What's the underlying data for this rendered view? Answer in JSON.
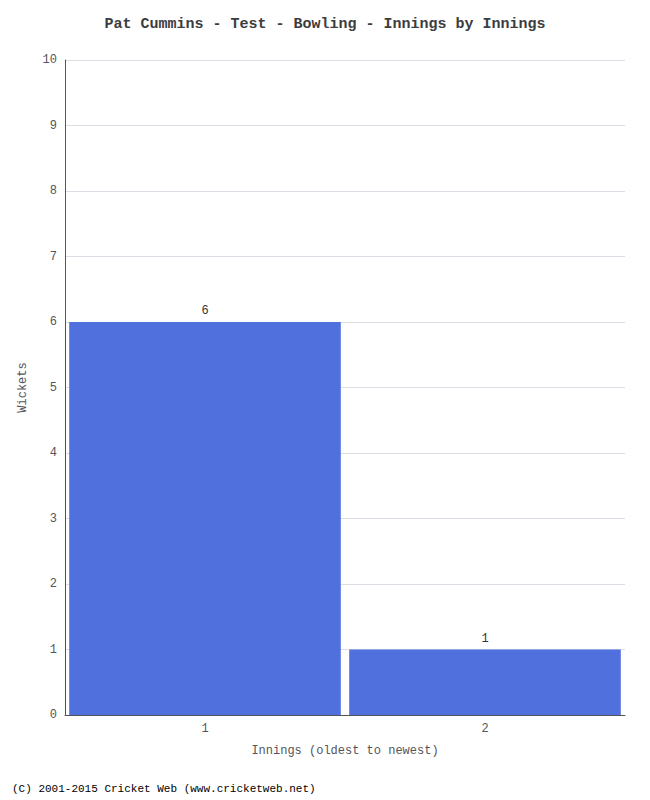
{
  "chart_data": {
    "type": "bar",
    "title": "Pat Cummins - Test - Bowling - Innings by Innings",
    "xlabel": "Innings (oldest to newest)",
    "ylabel": "Wickets",
    "categories": [
      1,
      2
    ],
    "values": [
      6,
      1
    ],
    "ylim": [
      0,
      10
    ],
    "yticks": [
      0,
      1,
      2,
      3,
      4,
      5,
      6,
      7,
      8,
      9,
      10
    ],
    "grid": true,
    "data_labels": true,
    "footer": "(C) 2001-2015 Cricket Web (www.cricketweb.net)"
  }
}
